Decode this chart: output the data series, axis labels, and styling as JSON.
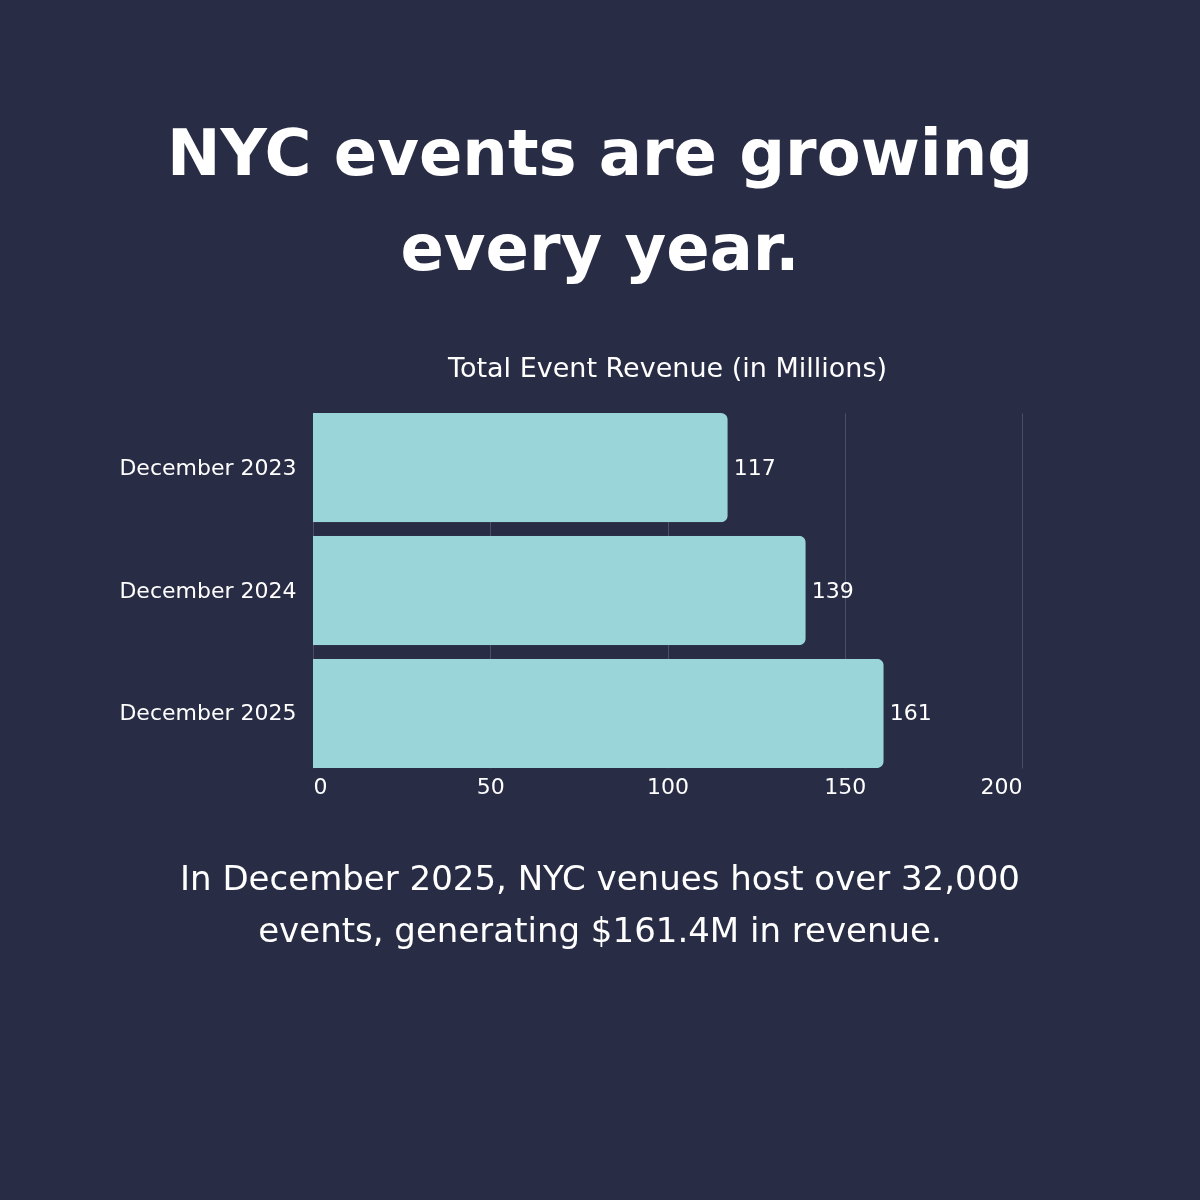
{
  "chart_data": {
    "type": "bar",
    "orientation": "horizontal",
    "title": "NYC events are growing every year.",
    "subtitle": "Total Event Revenue (in Millions)",
    "categories": [
      "December 2023",
      "December 2024",
      "December 2025"
    ],
    "values": [
      117,
      139,
      161
    ],
    "color": "#9ad6d9",
    "xlim": [
      0,
      200
    ],
    "xticks": [
      0,
      50,
      100,
      150,
      200
    ],
    "grid": "x",
    "data_labels": true,
    "annotations": [
      "In December 2025, NYC venues host over 32,000 events, generating $161.4M in revenue."
    ]
  }
}
